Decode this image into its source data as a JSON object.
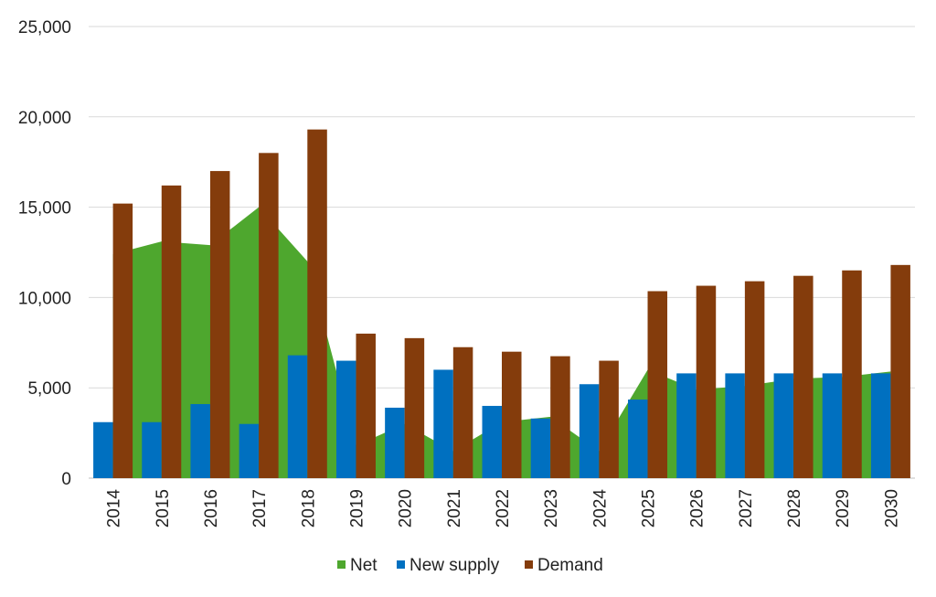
{
  "chart_data": {
    "type": "bar",
    "title": "",
    "xlabel": "",
    "ylabel": "",
    "ylim": [
      0,
      25000
    ],
    "yticks": [
      "0",
      "5,000",
      "10,000",
      "15,000",
      "20,000",
      "25,000"
    ],
    "grid": true,
    "legend_position": "bottom",
    "categories": [
      "2014",
      "2015",
      "2016",
      "2017",
      "2018",
      "2019",
      "2020",
      "2021",
      "2022",
      "2023",
      "2024",
      "2025",
      "2026",
      "2027",
      "2028",
      "2029",
      "2030"
    ],
    "series": [
      {
        "name": "Net",
        "kind": "area",
        "color": "#4ea72e",
        "values": [
          12400,
          13100,
          12900,
          15000,
          12000,
          1800,
          3000,
          1500,
          3100,
          3400,
          1500,
          6000,
          4900,
          5100,
          5500,
          5600,
          5900
        ]
      },
      {
        "name": "New supply",
        "kind": "bar",
        "color": "#0070c0",
        "values": [
          3100,
          3100,
          4100,
          3000,
          6800,
          6500,
          3900,
          6000,
          4000,
          3300,
          5200,
          4350,
          5800,
          5800,
          5800,
          5800,
          5800
        ]
      },
      {
        "name": "Demand",
        "kind": "bar",
        "color": "#843c0c",
        "values": [
          15200,
          16200,
          17000,
          18000,
          19300,
          8000,
          7750,
          7250,
          7000,
          6750,
          6500,
          10350,
          10650,
          10900,
          11200,
          11500,
          11800
        ]
      }
    ]
  }
}
